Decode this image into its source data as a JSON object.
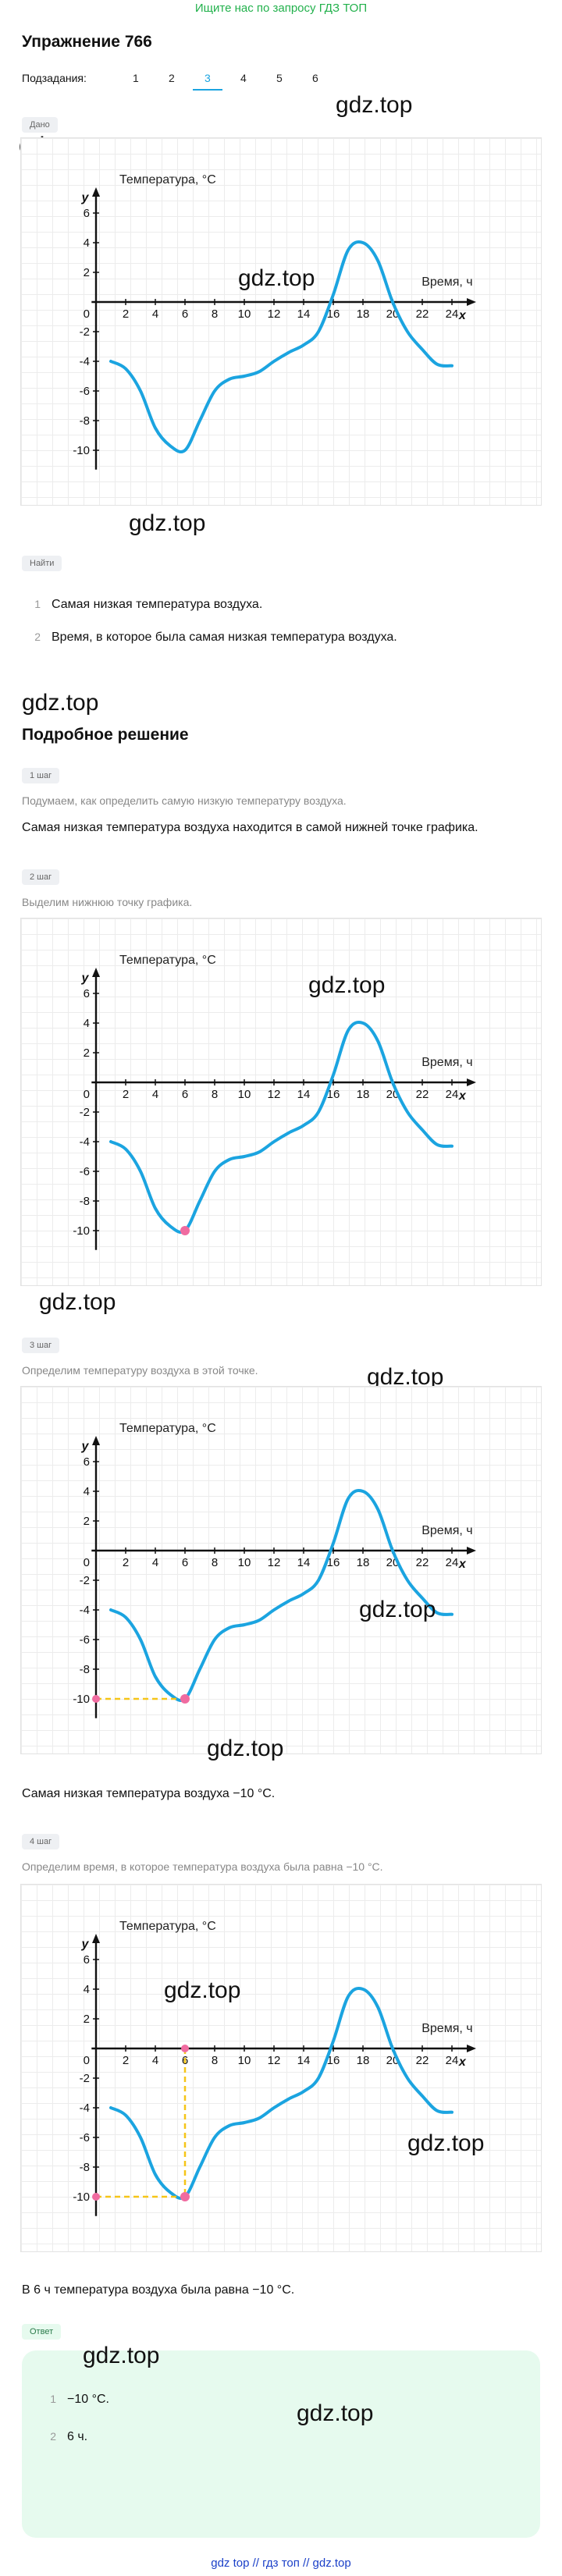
{
  "top_link": "Ищите нас по запросу ГДЗ ТОП",
  "title": "Упражнение 766",
  "subtasks": {
    "label": "Подзадания:",
    "items": [
      "1",
      "2",
      "3",
      "4",
      "5",
      "6"
    ],
    "active": "3"
  },
  "given_label": "Дано",
  "find_label": "Найти",
  "find_items": [
    {
      "n": "1",
      "text": "Самая низкая температура воздуха."
    },
    {
      "n": "2",
      "text": "Время, в которое была самая низкая температура воздуха."
    }
  ],
  "watermark": "gdz.top",
  "solution_title": "Подробное решение",
  "steps": [
    {
      "label": "1 шаг",
      "hint": "Подумаем, как определить самую низкую температуру воздуха.",
      "text": "Самая низкая температура воздуха находится в самой нижней точке графика."
    },
    {
      "label": "2 шаг",
      "hint": "Выделим нижнюю точку графика."
    },
    {
      "label": "3 шаг",
      "hint": "Определим температуру воздуха в этой точке.",
      "text": "Самая низкая температура воздуха −10 °C."
    },
    {
      "label": "4 шаг",
      "hint": "Определим время, в которое температура воздуха была равна −10 °C.",
      "text": "В 6 ч температура воздуха была равна −10 °C."
    }
  ],
  "answer_label": "Ответ",
  "answers": [
    {
      "n": "1",
      "text": "−10 °C."
    },
    {
      "n": "2",
      "text": "6 ч."
    }
  ],
  "footer": "gdz top  //  гдз топ  //  gdz.top",
  "chart_data": {
    "type": "line",
    "ylabel": "Температура, °C",
    "xlabel": "Время, ч",
    "x_axis_name": "x",
    "y_axis_name": "y",
    "xlim": [
      0,
      25
    ],
    "ylim": [
      -11,
      7
    ],
    "x_ticks": [
      0,
      2,
      4,
      6,
      8,
      10,
      12,
      14,
      16,
      18,
      20,
      22,
      24
    ],
    "y_ticks": [
      6,
      4,
      2,
      -2,
      -4,
      -6,
      -8,
      -10
    ],
    "origin_label": "0",
    "x": [
      1,
      2,
      3,
      4,
      5,
      6,
      7,
      8,
      9,
      10,
      11,
      12,
      13,
      14,
      15,
      16,
      17,
      18,
      19,
      20,
      21,
      22,
      23,
      24
    ],
    "y": [
      -4,
      -4.5,
      -6,
      -8.5,
      -9.7,
      -10,
      -8,
      -6,
      -5.2,
      -5,
      -4.7,
      -4,
      -3.4,
      -2.9,
      -2,
      0.5,
      3.5,
      4,
      2.8,
      0,
      -2,
      -3.2,
      -4.2,
      -4.3
    ],
    "line_color": "#1ba4e0",
    "marker_color": "#f06ba0",
    "highlight_point": {
      "x": 6,
      "y": -10
    },
    "highlight_y_label": "-10",
    "highlight_x_label": "6"
  }
}
